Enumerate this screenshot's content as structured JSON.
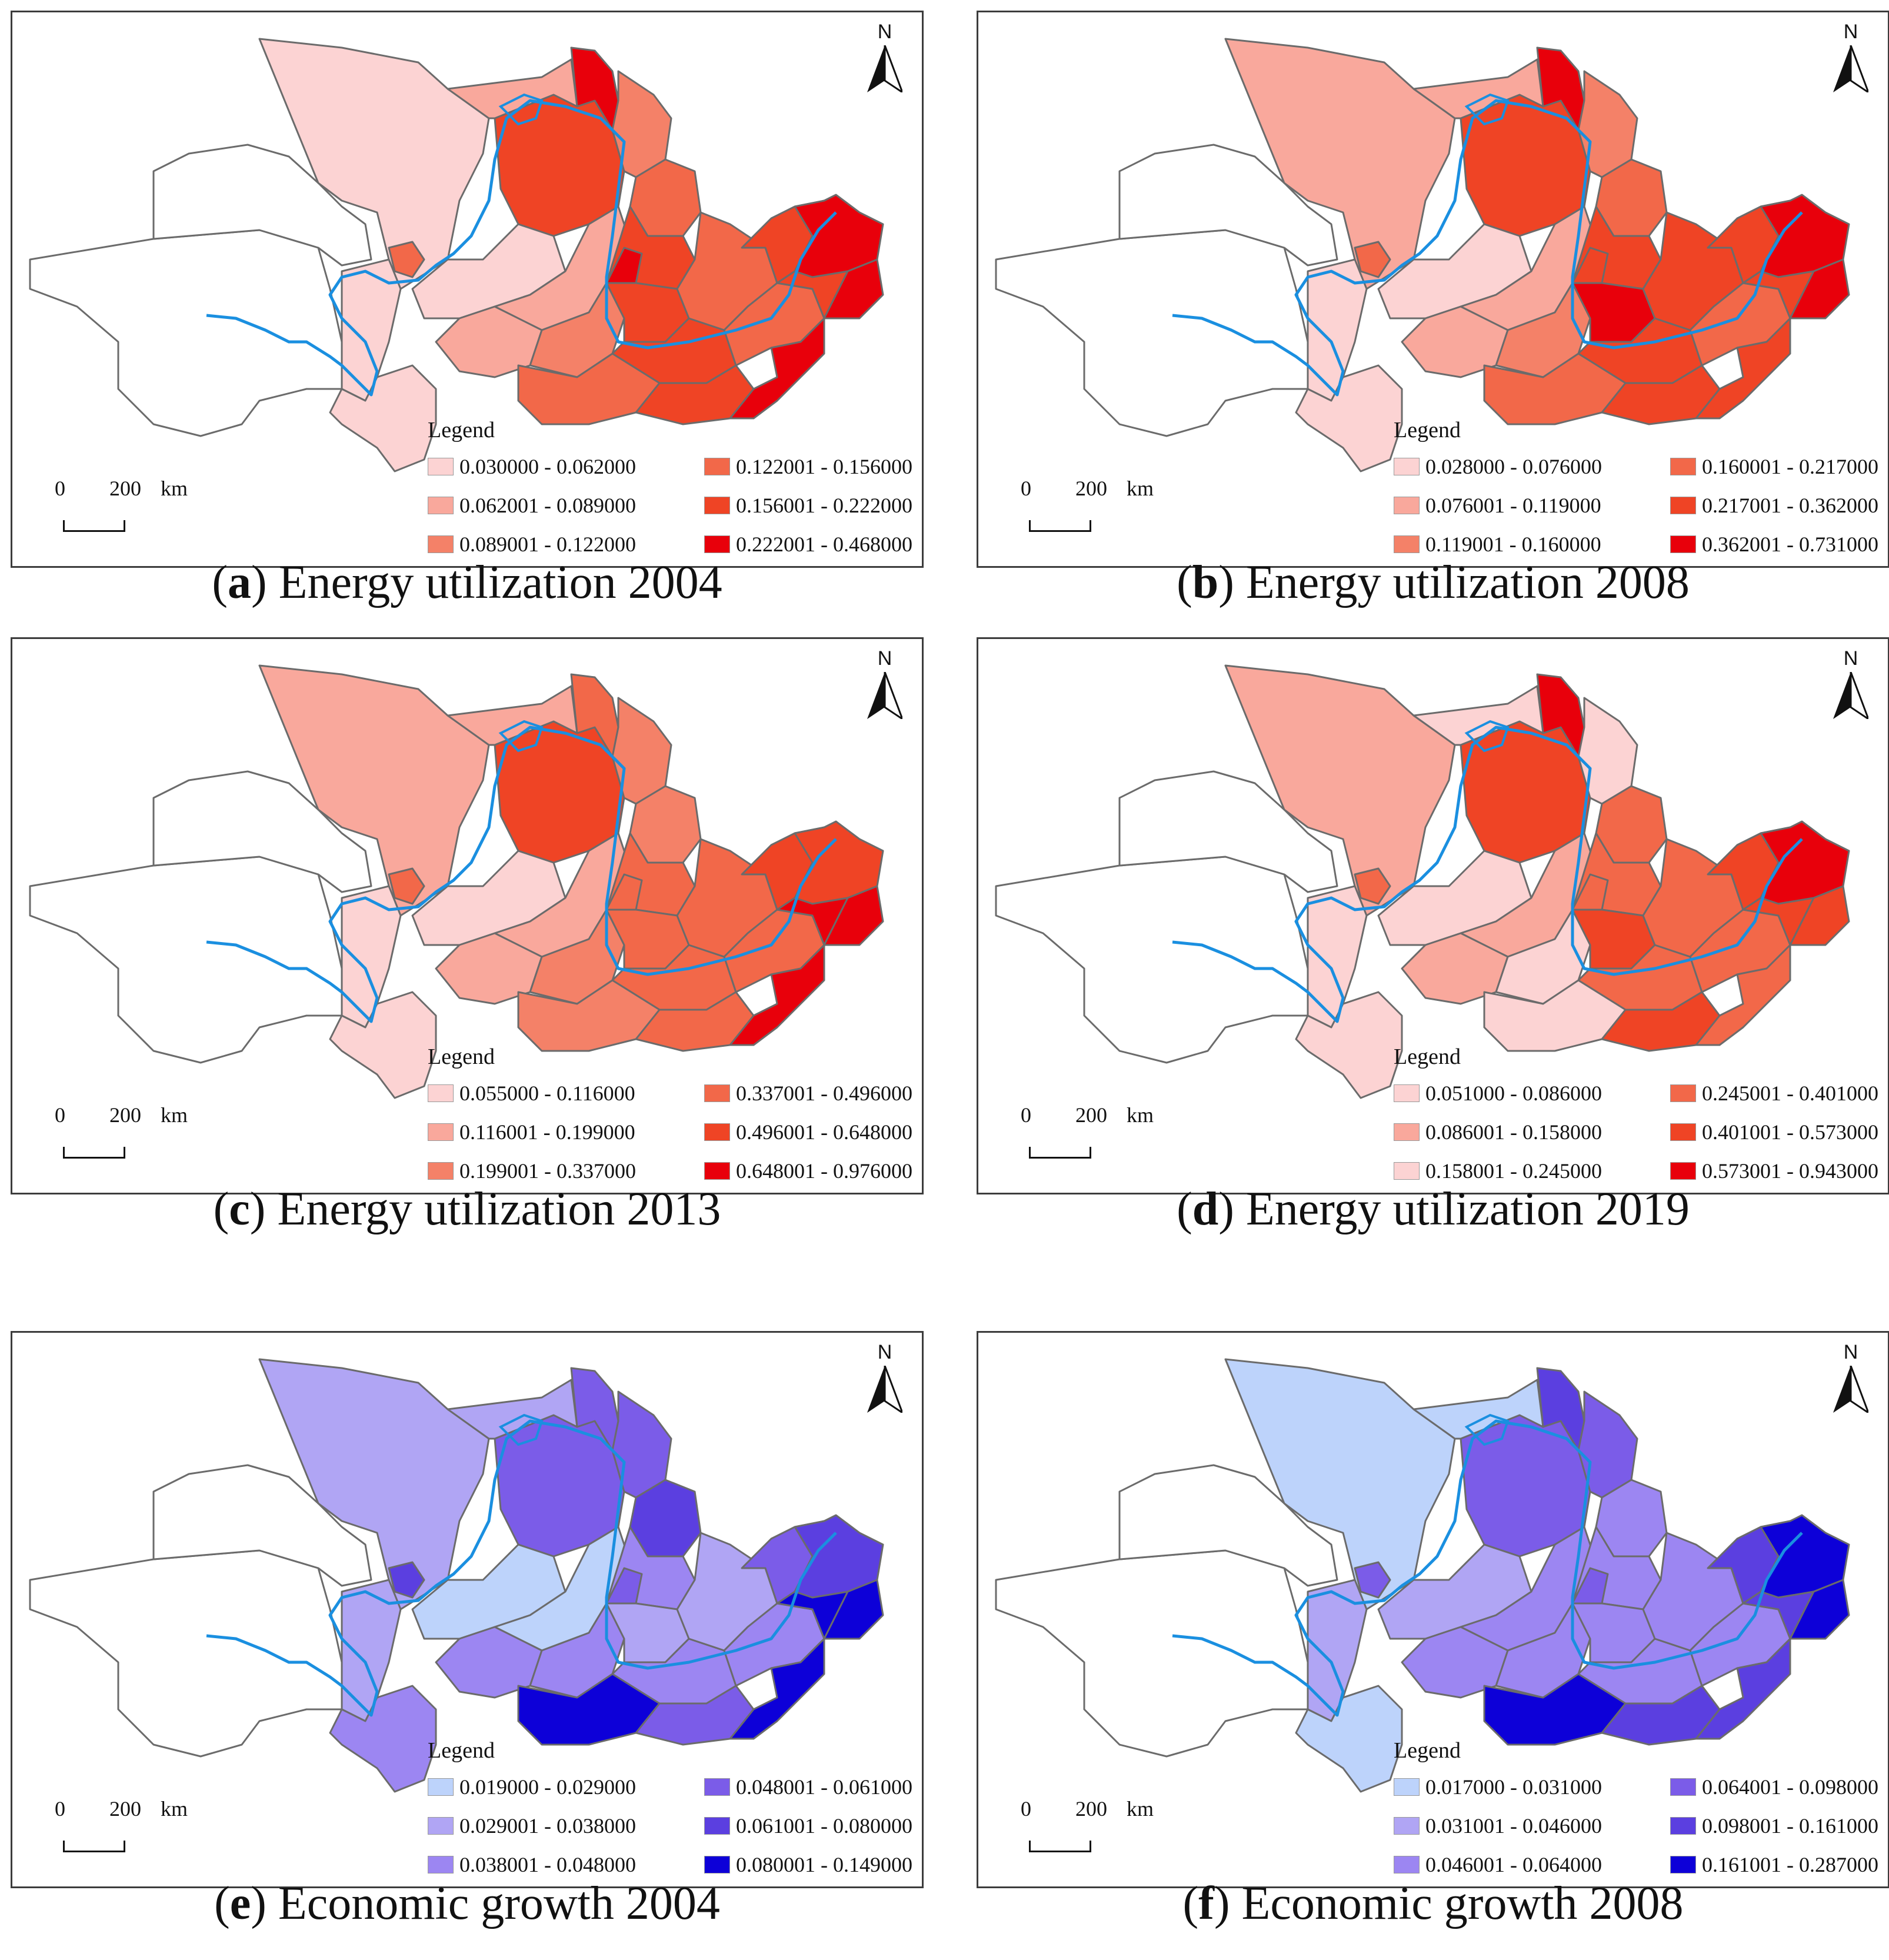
{
  "panels": [
    {
      "letter": "a",
      "title": "Energy utilization 2004",
      "legend_title": "Legend",
      "classes": [
        {
          "label": "0.030000 - 0.062000",
          "color": "#fcd3d3"
        },
        {
          "label": "0.062001 - 0.089000",
          "color": "#f9a89c"
        },
        {
          "label": "0.089001 - 0.122000",
          "color": "#f48168"
        },
        {
          "label": "0.122001 - 0.156000",
          "color": "#f26849"
        },
        {
          "label": "0.156001 - 0.222000",
          "color": "#ef4425"
        },
        {
          "label": "0.222001 - 0.468000",
          "color": "#e8000b"
        }
      ]
    },
    {
      "letter": "b",
      "title": "Energy utilization 2008",
      "legend_title": "Legend",
      "classes": [
        {
          "label": "0.028000 - 0.076000",
          "color": "#fcd3d3"
        },
        {
          "label": "0.076001 - 0.119000",
          "color": "#f9a89c"
        },
        {
          "label": "0.119001 - 0.160000",
          "color": "#f48168"
        },
        {
          "label": "0.160001 - 0.217000",
          "color": "#f26849"
        },
        {
          "label": "0.217001 - 0.362000",
          "color": "#ef4425"
        },
        {
          "label": "0.362001 - 0.731000",
          "color": "#e8000b"
        }
      ]
    },
    {
      "letter": "c",
      "title": "Energy utilization 2013",
      "legend_title": "Legend",
      "classes": [
        {
          "label": "0.055000 - 0.116000",
          "color": "#fcd3d3"
        },
        {
          "label": "0.116001 - 0.199000",
          "color": "#f9a89c"
        },
        {
          "label": "0.199001 - 0.337000",
          "color": "#f48168"
        },
        {
          "label": "0.337001 - 0.496000",
          "color": "#f26849"
        },
        {
          "label": "0.496001 - 0.648000",
          "color": "#ef4425"
        },
        {
          "label": "0.648001 - 0.976000",
          "color": "#e8000b"
        }
      ]
    },
    {
      "letter": "d",
      "title": "Energy utilization 2019",
      "legend_title": "Legend",
      "classes": [
        {
          "label": "0.051000 - 0.086000",
          "color": "#fcd3d3"
        },
        {
          "label": "0.086001 - 0.158000",
          "color": "#f9a89c"
        },
        {
          "label": "0.158001 - 0.245000",
          "color": "#fcd3d3"
        },
        {
          "label": "0.245001 - 0.401000",
          "color": "#f26849"
        },
        {
          "label": "0.401001 - 0.573000",
          "color": "#ef4425"
        },
        {
          "label": "0.573001 - 0.943000",
          "color": "#e8000b"
        }
      ]
    },
    {
      "letter": "e",
      "title": "Economic growth 2004",
      "legend_title": "Legend",
      "classes": [
        {
          "label": "0.019000 - 0.029000",
          "color": "#bdd3fb"
        },
        {
          "label": "0.029001 - 0.038000",
          "color": "#b0a5f4"
        },
        {
          "label": "0.038001 - 0.048000",
          "color": "#9c86f2"
        },
        {
          "label": "0.048001 - 0.061000",
          "color": "#7b5ce8"
        },
        {
          "label": "0.061001 - 0.080000",
          "color": "#5b3fe0"
        },
        {
          "label": "0.080001 - 0.149000",
          "color": "#0d00d8"
        }
      ]
    },
    {
      "letter": "f",
      "title": "Economic growth 2008",
      "legend_title": "Legend",
      "classes": [
        {
          "label": "0.017000 - 0.031000",
          "color": "#bdd3fb"
        },
        {
          "label": "0.031001 - 0.046000",
          "color": "#b0a5f4"
        },
        {
          "label": "0.046001 - 0.064000",
          "color": "#9c86f2"
        },
        {
          "label": "0.064001 - 0.098000",
          "color": "#7b5ce8"
        },
        {
          "label": "0.098001 - 0.161000",
          "color": "#5b3fe0"
        },
        {
          "label": "0.161001 - 0.287000",
          "color": "#0d00d8"
        }
      ]
    }
  ],
  "north_label": "N",
  "scale": {
    "zero": "0",
    "distance": "200",
    "unit": "km"
  },
  "river_color": "#1a8fe0"
}
